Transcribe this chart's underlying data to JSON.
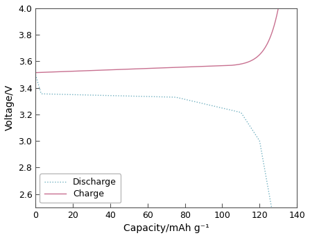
{
  "title": "",
  "xlabel": "Capacity/mAh g⁻¹",
  "ylabel": "Voltage/V",
  "xlim": [
    0,
    140
  ],
  "ylim": [
    2.5,
    4.0
  ],
  "xticks": [
    0,
    20,
    40,
    60,
    80,
    100,
    120,
    140
  ],
  "yticks": [
    2.6,
    2.8,
    3.0,
    3.2,
    3.4,
    3.6,
    3.8,
    4.0
  ],
  "charge_color": "#c87090",
  "discharge_color": "#70b0c0",
  "legend_labels": [
    "Charge",
    "Discharge"
  ],
  "background_color": "#ffffff",
  "figsize": [
    4.47,
    3.43
  ],
  "dpi": 100,
  "spine_color": "#555555",
  "tick_color": "#333333"
}
